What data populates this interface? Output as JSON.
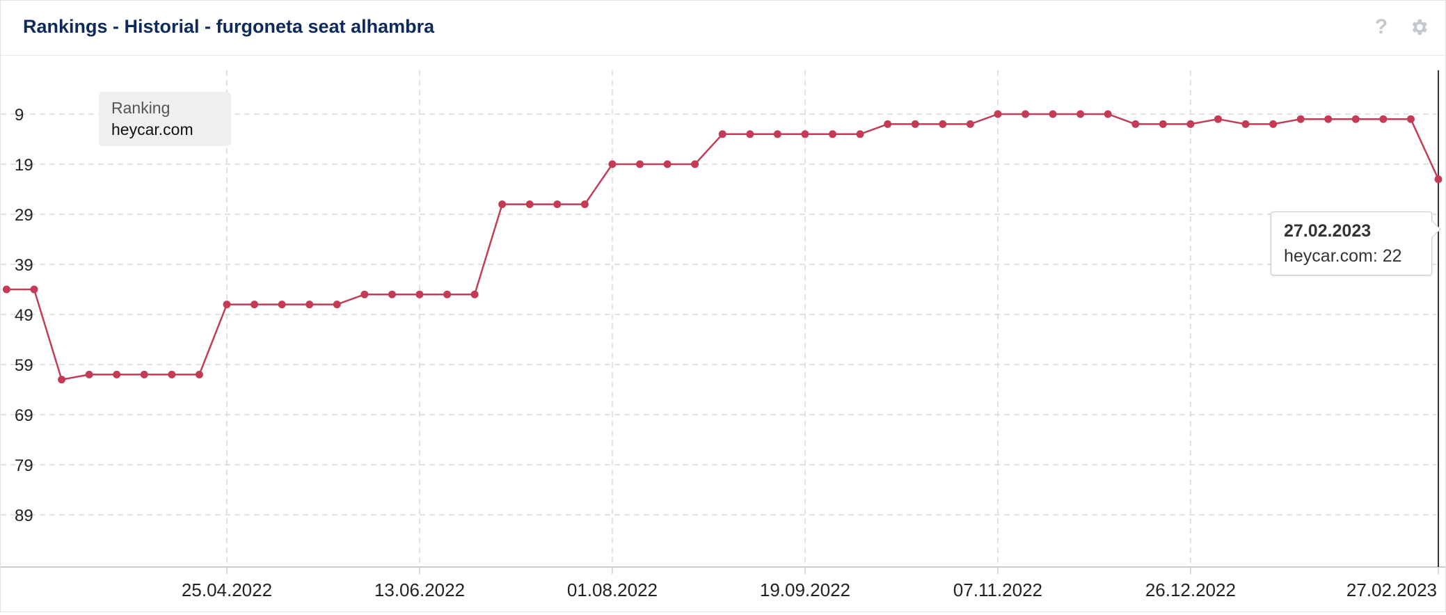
{
  "header": {
    "title": "Rankings - Historial - furgoneta seat alhambra",
    "help_icon": "?",
    "icons": [
      "help-icon",
      "gear-icon"
    ]
  },
  "legend": {
    "title": "Ranking",
    "item": "heycar.com"
  },
  "tooltip": {
    "date": "27.02.2023",
    "value": "heycar.com: 22"
  },
  "colors": {
    "series": "#c33b55",
    "title": "#0d2b5a",
    "grid": "#d8d8d8",
    "icons": "#c5c9ce"
  },
  "chart_data": {
    "type": "line",
    "title": "",
    "xlabel": "",
    "ylabel": "",
    "y_reversed": true,
    "ylim": [
      0,
      99
    ],
    "y_ticks": [
      9,
      19,
      29,
      39,
      49,
      59,
      69,
      79,
      89
    ],
    "x_ticks": [
      "25.04.2022",
      "13.06.2022",
      "01.08.2022",
      "19.09.2022",
      "07.11.2022",
      "26.12.2022",
      "27.02.2023"
    ],
    "grid": true,
    "legend_position": "top-left",
    "series": [
      {
        "name": "heycar.com",
        "x": [
          "07.03.2022",
          "14.03.2022",
          "21.03.2022",
          "28.03.2022",
          "04.04.2022",
          "11.04.2022",
          "18.04.2022",
          "25.04.2022",
          "02.05.2022",
          "09.05.2022",
          "16.05.2022",
          "23.05.2022",
          "30.05.2022",
          "06.06.2022",
          "13.06.2022",
          "20.06.2022",
          "27.06.2022",
          "04.07.2022",
          "11.07.2022",
          "18.07.2022",
          "25.07.2022",
          "01.08.2022",
          "08.08.2022",
          "15.08.2022",
          "22.08.2022",
          "29.08.2022",
          "05.09.2022",
          "12.09.2022",
          "19.09.2022",
          "26.09.2022",
          "03.10.2022",
          "10.10.2022",
          "17.10.2022",
          "24.10.2022",
          "31.10.2022",
          "07.11.2022",
          "14.11.2022",
          "21.11.2022",
          "28.11.2022",
          "05.12.2022",
          "12.12.2022",
          "19.12.2022",
          "26.12.2022",
          "02.01.2023",
          "09.01.2023",
          "16.01.2023",
          "23.01.2023",
          "30.01.2023",
          "06.02.2023",
          "13.02.2023",
          "20.02.2023",
          "27.02.2023"
        ],
        "values": [
          44,
          62,
          61,
          61,
          61,
          61,
          61,
          47,
          47,
          47,
          47,
          47,
          45,
          45,
          45,
          45,
          45,
          27,
          27,
          27,
          27,
          19,
          19,
          19,
          19,
          13,
          13,
          13,
          13,
          13,
          13,
          11,
          11,
          11,
          11,
          9,
          9,
          9,
          9,
          9,
          11,
          11,
          11,
          10,
          11,
          11,
          10,
          10,
          10,
          10,
          10,
          22
        ],
        "partial_first_value": 44
      }
    ]
  }
}
